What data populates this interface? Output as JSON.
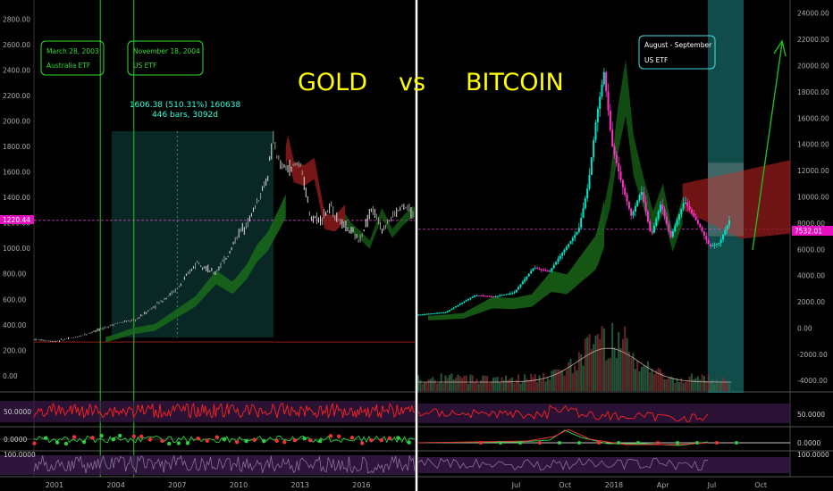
{
  "title": {
    "left": "GOLD",
    "mid": "vs",
    "right": "BITCOIN"
  },
  "annotations": {
    "left_box1": {
      "date": "March 28, 2003",
      "label": "Australia ETF"
    },
    "left_box2": {
      "date": "November 18, 2004",
      "label": "US ETF"
    },
    "right_box": {
      "date": "August - September",
      "label": "US ETF"
    },
    "measure_line1": "1606.38 (510.31%) 160638",
    "measure_line2": "446 bars, 3092d"
  },
  "price_tags": {
    "gold": "1220.44",
    "btc": "7532.01"
  },
  "colors": {
    "up": "#00e5c8",
    "down": "#ff33cc",
    "highlight": "#1e8c86",
    "annotation": "#33dd33",
    "title": "#ffff00",
    "tag": "#e60fbd",
    "rsi": "#ff2222",
    "cloud_bull": "#1a6b1a",
    "cloud_bear": "#8b1a1a"
  },
  "chart_data": [
    {
      "type": "line",
      "name_panel": "gold",
      "x_ticks": [
        "2001",
        "2004",
        "2007",
        "2010",
        "2013",
        "2016"
      ],
      "y_ticks": [
        "0.00",
        "200.00",
        "400.00",
        "600.00",
        "800.00",
        "1000.00",
        "1200.00",
        "1400.00",
        "1600.00",
        "1800.00",
        "2000.00",
        "2200.00",
        "2400.00",
        "2600.00",
        "2800.00"
      ],
      "ylim": [
        -120,
        2950
      ],
      "xlim": [
        2000.0,
        2018.6
      ],
      "series": [
        {
          "x": [
            2000.0,
            2001.0,
            2002.0,
            2003.0,
            2004.0,
            2005.0,
            2006.0,
            2007.0,
            2008.0,
            2008.8,
            2009.5,
            2010.0,
            2010.5,
            2011.0,
            2011.4,
            2011.7,
            2012.0,
            2012.5,
            2013.0,
            2013.5,
            2014.0,
            2014.5,
            2015.0,
            2015.5,
            2015.9,
            2016.5,
            2017.0,
            2017.5,
            2018.0,
            2018.4,
            2018.6
          ],
          "values": [
            285,
            270,
            300,
            350,
            410,
            440,
            560,
            680,
            900,
            800,
            950,
            1120,
            1220,
            1400,
            1550,
            1860,
            1650,
            1620,
            1680,
            1250,
            1230,
            1320,
            1200,
            1130,
            1060,
            1320,
            1150,
            1250,
            1330,
            1300,
            1230
          ]
        }
      ],
      "rsi_ticks": [
        "50.0000"
      ],
      "macd_ticks": [
        "0.0000"
      ],
      "stoch_ticks": [
        "100.0000"
      ]
    },
    {
      "type": "line",
      "name_panel": "bitcoin",
      "x_ticks": [
        "Jul",
        "Oct",
        "2018",
        "Apr",
        "Jul",
        "Oct"
      ],
      "y_ticks": [
        "-4000.00",
        "-2000.00",
        "0.00",
        "2000.00",
        "4000.00",
        "6000.00",
        "8000.00",
        "10000.00",
        "12000.00",
        "14000.00",
        "16000.00",
        "18000.00",
        "20000.00",
        "22000.00",
        "24000.00"
      ],
      "ylim": [
        -4800,
        25000
      ],
      "xlim": [
        2017.0,
        2018.9
      ],
      "series": [
        {
          "x": [
            2017.0,
            2017.15,
            2017.3,
            2017.4,
            2017.5,
            2017.6,
            2017.68,
            2017.75,
            2017.83,
            2017.88,
            2017.92,
            2017.96,
            2018.0,
            2018.05,
            2018.1,
            2018.15,
            2018.2,
            2018.25,
            2018.3,
            2018.37,
            2018.45,
            2018.5,
            2018.55,
            2018.6
          ],
          "values": [
            1000,
            1200,
            2500,
            2400,
            2700,
            4600,
            4300,
            5800,
            7500,
            11000,
            16000,
            19500,
            14000,
            11000,
            8500,
            10500,
            7000,
            9500,
            6900,
            9700,
            7700,
            6200,
            6500,
            8200
          ]
        }
      ],
      "rsi_ticks": [
        "50.0000"
      ],
      "macd_ticks": [
        "0.0000"
      ],
      "stoch_ticks": [
        "100.0000"
      ]
    }
  ]
}
